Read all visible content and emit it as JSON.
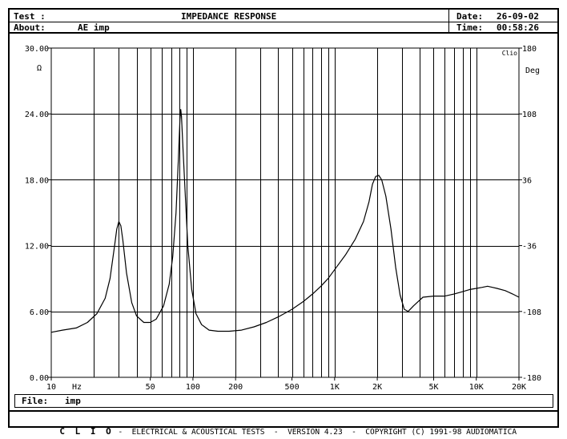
{
  "header": {
    "test_label": "Test :",
    "title": "IMPEDANCE RESPONSE",
    "about_label": "About:",
    "about_value": "AE imp",
    "date_label": "Date:",
    "date_value": "26-09-02",
    "time_label": "Time:",
    "time_value": "00:58:26"
  },
  "file": {
    "label": "File:",
    "value": "imp"
  },
  "footer": {
    "brand": "C L I O",
    "text": " -  ELECTRICAL & ACOUSTICAL TESTS  -  VERSION 4.23  -  COPYRIGHT (C) 1991-98 AUDIOMATICA"
  },
  "chart_data": {
    "type": "line",
    "title": "IMPEDANCE RESPONSE",
    "x_scale": "log",
    "xlim": [
      10,
      20000
    ],
    "ylim": [
      0,
      30
    ],
    "y2lim": [
      -180,
      180
    ],
    "ylabel": "Ω",
    "y2label": "Deg",
    "xlabel": "Hz",
    "corner_label": "Clio",
    "grid": true,
    "x_tick_labels": [
      {
        "x": 10,
        "label": "10"
      },
      {
        "x": 50,
        "label": "50"
      },
      {
        "x": 100,
        "label": "100"
      },
      {
        "x": 200,
        "label": "200"
      },
      {
        "x": 500,
        "label": "500"
      },
      {
        "x": 1000,
        "label": "1K"
      },
      {
        "x": 2000,
        "label": "2K"
      },
      {
        "x": 5000,
        "label": "5K"
      },
      {
        "x": 10000,
        "label": "10K"
      },
      {
        "x": 20000,
        "label": "20K"
      }
    ],
    "y_tick_labels": [
      "0.00",
      "6.00",
      "12.00",
      "18.00",
      "24.00",
      "30.00"
    ],
    "y_ticks": [
      0,
      6,
      12,
      18,
      24,
      30
    ],
    "y2_tick_labels": [
      "-180",
      "-108",
      "-36",
      "36",
      "108",
      "180"
    ],
    "y2_ticks": [
      -180,
      -108,
      -36,
      36,
      108,
      180
    ],
    "series": [
      {
        "color": "#000000",
        "points": [
          [
            10,
            4.1
          ],
          [
            12,
            4.3
          ],
          [
            15,
            4.5
          ],
          [
            18,
            5.0
          ],
          [
            21,
            5.8
          ],
          [
            24,
            7.2
          ],
          [
            26,
            9.0
          ],
          [
            28,
            12.0
          ],
          [
            29,
            13.5
          ],
          [
            30,
            14.2
          ],
          [
            31,
            13.8
          ],
          [
            32,
            12.5
          ],
          [
            34,
            9.5
          ],
          [
            37,
            6.8
          ],
          [
            40,
            5.6
          ],
          [
            45,
            5.0
          ],
          [
            50,
            5.0
          ],
          [
            55,
            5.3
          ],
          [
            62,
            6.5
          ],
          [
            68,
            8.5
          ],
          [
            72,
            11.0
          ],
          [
            76,
            15.0
          ],
          [
            79,
            20.0
          ],
          [
            81,
            23.5
          ],
          [
            82,
            24.4
          ],
          [
            83,
            23.8
          ],
          [
            85,
            21.0
          ],
          [
            88,
            17.0
          ],
          [
            92,
            12.0
          ],
          [
            98,
            8.0
          ],
          [
            105,
            5.8
          ],
          [
            115,
            4.8
          ],
          [
            130,
            4.3
          ],
          [
            150,
            4.2
          ],
          [
            180,
            4.2
          ],
          [
            220,
            4.3
          ],
          [
            270,
            4.6
          ],
          [
            330,
            5.0
          ],
          [
            400,
            5.5
          ],
          [
            500,
            6.2
          ],
          [
            600,
            6.9
          ],
          [
            700,
            7.6
          ],
          [
            800,
            8.3
          ],
          [
            900,
            9.0
          ],
          [
            1000,
            9.8
          ],
          [
            1200,
            11.2
          ],
          [
            1400,
            12.6
          ],
          [
            1600,
            14.2
          ],
          [
            1750,
            16.0
          ],
          [
            1850,
            17.6
          ],
          [
            1950,
            18.3
          ],
          [
            2050,
            18.4
          ],
          [
            2150,
            18.0
          ],
          [
            2300,
            16.5
          ],
          [
            2500,
            13.5
          ],
          [
            2700,
            10.0
          ],
          [
            2900,
            7.5
          ],
          [
            3100,
            6.2
          ],
          [
            3300,
            6.0
          ],
          [
            3600,
            6.5
          ],
          [
            4200,
            7.3
          ],
          [
            5000,
            7.4
          ],
          [
            6000,
            7.4
          ],
          [
            7000,
            7.6
          ],
          [
            8000,
            7.8
          ],
          [
            9000,
            8.0
          ],
          [
            10000,
            8.1
          ],
          [
            11000,
            8.2
          ],
          [
            12000,
            8.3
          ],
          [
            13000,
            8.2
          ],
          [
            14000,
            8.1
          ],
          [
            16000,
            7.9
          ],
          [
            18000,
            7.6
          ],
          [
            20000,
            7.3
          ]
        ]
      }
    ]
  }
}
